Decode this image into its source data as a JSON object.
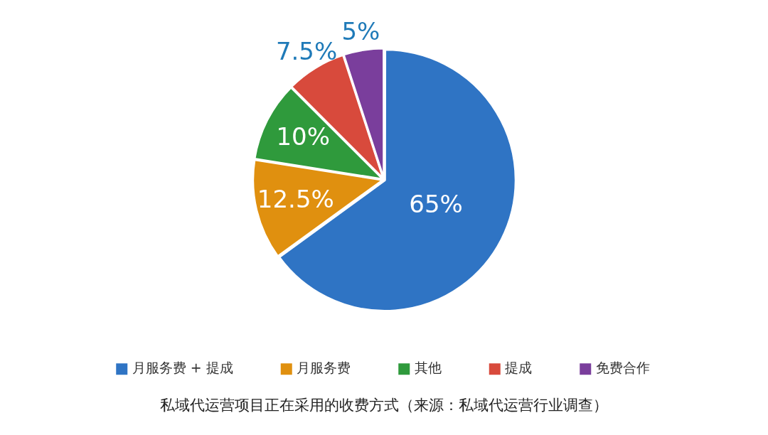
{
  "chart_data": {
    "type": "pie",
    "title": "私域代运营项目正在采用的收费方式（来源：私域代运营行业调查）",
    "categories": [
      "月服务费 + 提成",
      "月服务费",
      "其他",
      "提成",
      "免费合作"
    ],
    "values": [
      65,
      12.5,
      10,
      7.5,
      5
    ],
    "colors": [
      "#2f74c4",
      "#e0900f",
      "#2f9a3c",
      "#d84a3c",
      "#7a3e9c"
    ],
    "value_labels": [
      "65%",
      "12.5%",
      "10%",
      "7.5%",
      "5%"
    ],
    "legend": "bottom"
  }
}
